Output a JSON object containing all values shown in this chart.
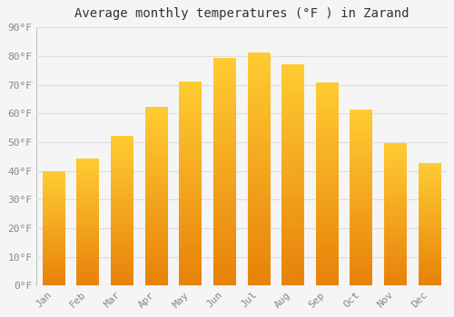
{
  "title": "Average monthly temperatures (°F ) in Zarand",
  "months": [
    "Jan",
    "Feb",
    "Mar",
    "Apr",
    "May",
    "Jun",
    "Jul",
    "Aug",
    "Sep",
    "Oct",
    "Nov",
    "Dec"
  ],
  "values": [
    39.5,
    44,
    52,
    62,
    71,
    79,
    81,
    77,
    70.5,
    61,
    49.5,
    42.5
  ],
  "bar_color_bottom": "#E8820A",
  "bar_color_top": "#FFCC33",
  "background_color": "#F5F5F5",
  "grid_color": "#DDDDDD",
  "text_color": "#888888",
  "title_color": "#333333",
  "ylim": [
    0,
    90
  ],
  "yticks": [
    0,
    10,
    20,
    30,
    40,
    50,
    60,
    70,
    80,
    90
  ],
  "title_fontsize": 10,
  "tick_fontsize": 8,
  "bar_width": 0.65
}
